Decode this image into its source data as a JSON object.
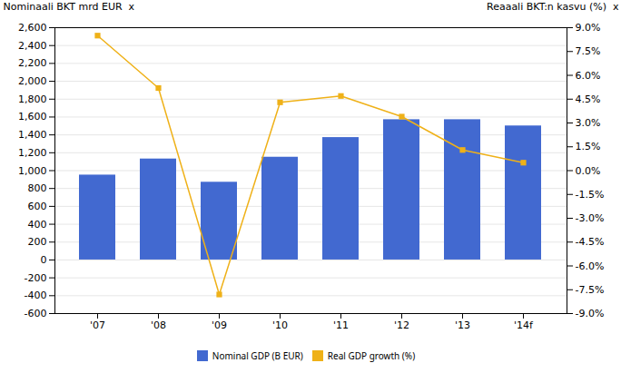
{
  "chart_data": {
    "type": "bar",
    "categories": [
      "'07",
      "'08",
      "'09",
      "'10",
      "'11",
      "'12",
      "'13",
      "'14f"
    ],
    "series": [
      {
        "name": "Nominal GDP (B EUR)",
        "type": "bar",
        "values": [
          950,
          1130,
          870,
          1150,
          1370,
          1570,
          1570,
          1500
        ]
      },
      {
        "name": "Real GDP growth (%)",
        "type": "line",
        "marker": "square",
        "axis": "y2",
        "values": [
          8.5,
          5.2,
          -7.8,
          4.3,
          4.7,
          3.4,
          1.3,
          0.5
        ]
      }
    ],
    "ylabel": "Nominaali BKT mrd EUR  x",
    "y2label": "Reaaali BKT:n kasvu (%)  x",
    "ylim": [
      -600,
      2600
    ],
    "yticks": [
      -600,
      -400,
      -200,
      0,
      200,
      400,
      600,
      800,
      {
        "value": 1000,
        "label": "1,000"
      },
      {
        "value": 1200,
        "label": "1,200"
      },
      {
        "value": 1400,
        "label": "1,400"
      },
      {
        "value": 1600,
        "label": "1,600"
      },
      {
        "value": 1800,
        "label": "1,800"
      },
      {
        "value": 2000,
        "label": "2,000"
      },
      {
        "value": 2200,
        "label": "2,200"
      },
      {
        "value": 2400,
        "label": "2,400"
      },
      {
        "value": 2600,
        "label": "2,600"
      }
    ],
    "y2lim": [
      -9.0,
      9.0
    ],
    "y2ticks": [
      {
        "value": -9.0,
        "label": "-9.0%"
      },
      {
        "value": -7.5,
        "label": "-7.5%"
      },
      {
        "value": -6.0,
        "label": "-6.0%"
      },
      {
        "value": -4.5,
        "label": "-4.5%"
      },
      {
        "value": -3.0,
        "label": "-3.0%"
      },
      {
        "value": -1.5,
        "label": "-1.5%"
      },
      {
        "value": 0.0,
        "label": "0.0%"
      },
      {
        "value": 1.5,
        "label": "1.5%"
      },
      {
        "value": 3.0,
        "label": "3.0%"
      },
      {
        "value": 4.5,
        "label": "4.5%"
      },
      {
        "value": 6.0,
        "label": "6.0%"
      },
      {
        "value": 7.5,
        "label": "7.5%"
      },
      {
        "value": 9.0,
        "label": "9.0%"
      }
    ],
    "grid": true,
    "legend": "bottom"
  }
}
